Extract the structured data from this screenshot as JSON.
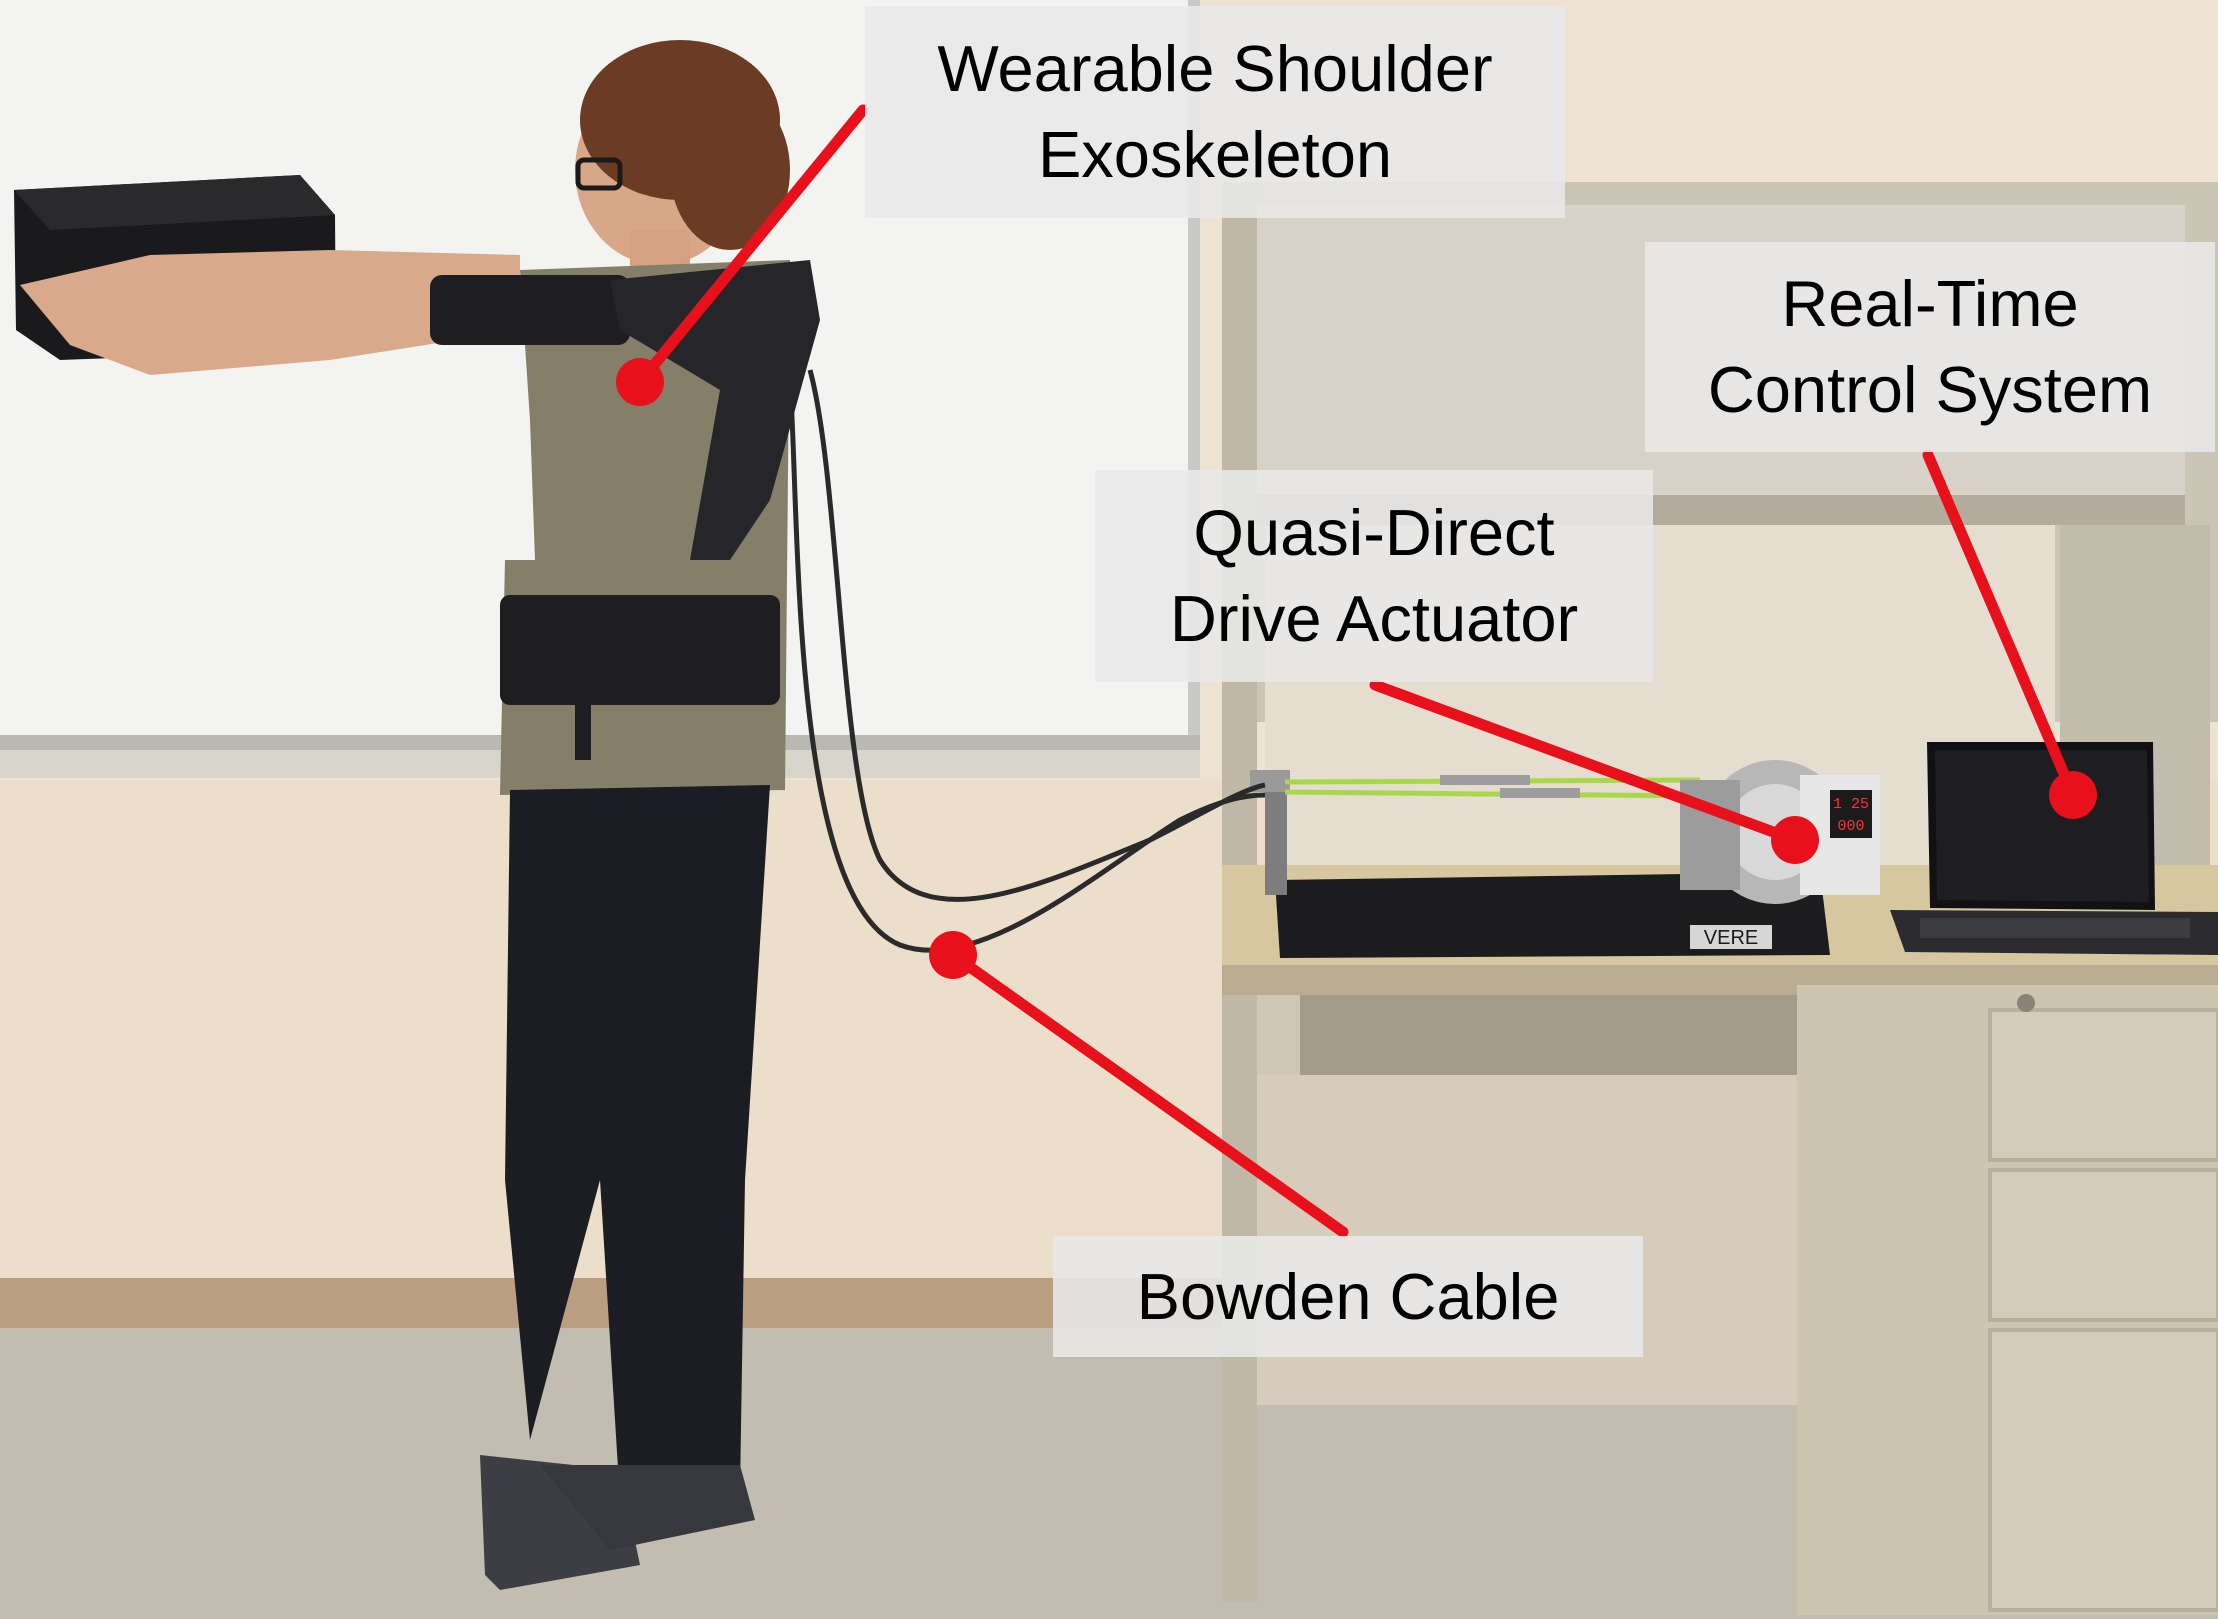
{
  "figure": {
    "labels": [
      {
        "text": "Wearable Shoulder\nExoskeleton"
      },
      {
        "text": "Real-Time\nControl System"
      },
      {
        "text": "Quasi-Direct\nDrive Actuator"
      },
      {
        "text": "Bowden Cable"
      }
    ],
    "brand_text": "VERE",
    "power_supply_readout": [
      "1 25",
      "000"
    ],
    "colors": {
      "annotation_red": "#e8101a",
      "wall_upper": "#eee3d3",
      "wall_lower": "#e9dcc8",
      "whiteboard": "#f4f4f2",
      "desk": "#cfc5a9",
      "desk_top": "#d9c9a5",
      "floor": "#c9c1b7",
      "baseboard": "#b99e80",
      "shirt": "#837c68",
      "pants": "#1c1d22"
    }
  }
}
